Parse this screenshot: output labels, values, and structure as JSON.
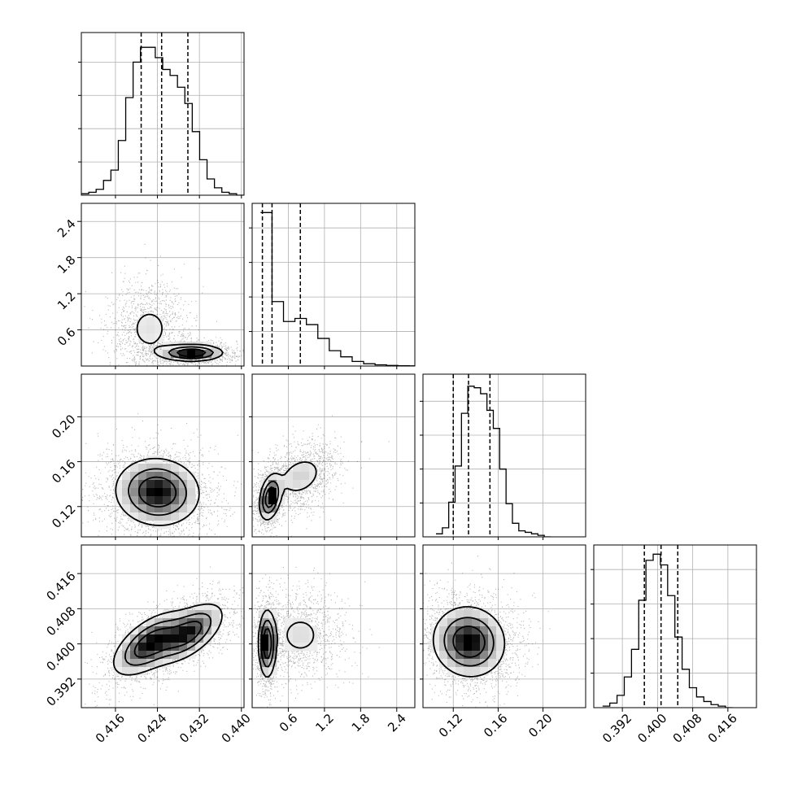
{
  "chart_data": {
    "type": "corner",
    "grid": true,
    "colors": {
      "line": "#000000",
      "grid": "#b0b0b0",
      "background": "#ffffff",
      "frame": "#000000"
    },
    "parameters": [
      {
        "range": [
          0.4095,
          0.4405
        ],
        "ticks": [
          0.416,
          0.424,
          0.432,
          0.44
        ],
        "tick_labels": [
          "0.416",
          "0.424",
          "0.432",
          "0.440"
        ],
        "quantiles": [
          0.4209,
          0.4248,
          0.4298
        ],
        "hist": [
          0.01,
          0.02,
          0.04,
          0.1,
          0.17,
          0.37,
          0.66,
          0.9,
          1.0,
          1.0,
          0.93,
          0.85,
          0.81,
          0.73,
          0.62,
          0.43,
          0.24,
          0.11,
          0.05,
          0.02,
          0.01,
          0.0
        ],
        "hist_ylim": [
          0,
          1.1
        ]
      },
      {
        "range": [
          0.0,
          2.7
        ],
        "ticks": [
          0.6,
          1.2,
          1.8,
          2.4
        ],
        "tick_labels": [
          "0.6",
          "1.2",
          "1.8",
          "2.4"
        ],
        "quantiles": [
          0.17,
          0.33,
          0.8
        ],
        "hist": [
          1.0,
          0.42,
          0.29,
          0.31,
          0.27,
          0.18,
          0.1,
          0.06,
          0.03,
          0.015,
          0.008,
          0.004,
          0.002,
          0.001
        ],
        "hist_range": [
          0.14,
          2.8
        ],
        "hist_ylim": [
          0,
          1.06
        ]
      },
      {
        "range": [
          0.093,
          0.238
        ],
        "ticks": [
          0.12,
          0.16,
          0.2
        ],
        "tick_labels": [
          "0.12",
          "0.16",
          "0.20"
        ],
        "quantiles": [
          0.12,
          0.1336,
          0.1527
        ],
        "hist": [
          0.02,
          0.06,
          0.23,
          0.47,
          0.82,
          1.0,
          0.99,
          0.95,
          0.84,
          0.72,
          0.45,
          0.22,
          0.09,
          0.04,
          0.03,
          0.02,
          0.01,
          0.0
        ],
        "hist_range": [
          0.1046,
          0.2068
        ],
        "hist_ylim": [
          0,
          1.08
        ]
      },
      {
        "range": [
          0.3855,
          0.4225
        ],
        "ticks": [
          0.392,
          0.4,
          0.408,
          0.416
        ],
        "tick_labels": [
          "0.392",
          "0.400",
          "0.408",
          "0.416"
        ],
        "quantiles": [
          0.397,
          0.4008,
          0.4046
        ],
        "hist": [
          0.01,
          0.03,
          0.08,
          0.2,
          0.38,
          0.7,
          0.96,
          1.0,
          0.93,
          0.73,
          0.46,
          0.25,
          0.13,
          0.07,
          0.04,
          0.02,
          0.01,
          0.0
        ],
        "hist_range": [
          0.3875,
          0.4171
        ],
        "hist_ylim": [
          0,
          1.06
        ]
      }
    ],
    "pairs": [
      {
        "x": 0,
        "y": 1,
        "clusters": [
          {
            "cx": 0.4225,
            "cy": 0.62,
            "sx": 0.003,
            "sy": 0.3,
            "w": 0.45,
            "rho": 0.0
          },
          {
            "cx": 0.4305,
            "cy": 0.22,
            "sx": 0.003,
            "sy": 0.07,
            "w": 0.55,
            "rho": 0.0
          }
        ]
      },
      {
        "x": 0,
        "y": 2,
        "clusters": [
          {
            "cx": 0.424,
            "cy": 0.133,
            "sx": 0.004,
            "sy": 0.015,
            "w": 1.0,
            "rho": -0.05
          }
        ]
      },
      {
        "x": 1,
        "y": 2,
        "clusters": [
          {
            "cx": 0.3,
            "cy": 0.128,
            "sx": 0.09,
            "sy": 0.01,
            "w": 0.55,
            "rho": 0.3
          },
          {
            "cx": 0.8,
            "cy": 0.147,
            "sx": 0.25,
            "sy": 0.012,
            "w": 0.45,
            "rho": 0.3
          }
        ]
      },
      {
        "x": 0,
        "y": 3,
        "clusters": [
          {
            "cx": 0.4225,
            "cy": 0.4,
            "sx": 0.0035,
            "sy": 0.0036,
            "w": 0.55,
            "rho": 0.6
          },
          {
            "cx": 0.43,
            "cy": 0.4025,
            "sx": 0.0033,
            "sy": 0.0034,
            "w": 0.45,
            "rho": 0.6
          }
        ]
      },
      {
        "x": 1,
        "y": 3,
        "clusters": [
          {
            "cx": 0.25,
            "cy": 0.4,
            "sx": 0.07,
            "sy": 0.0038,
            "w": 0.55,
            "rho": 0.0
          },
          {
            "cx": 0.8,
            "cy": 0.402,
            "sx": 0.3,
            "sy": 0.004,
            "w": 0.45,
            "rho": 0.0
          }
        ]
      },
      {
        "x": 2,
        "y": 3,
        "clusters": [
          {
            "cx": 0.134,
            "cy": 0.4005,
            "sx": 0.016,
            "sy": 0.004,
            "w": 1.0,
            "rho": -0.05
          }
        ]
      }
    ]
  }
}
